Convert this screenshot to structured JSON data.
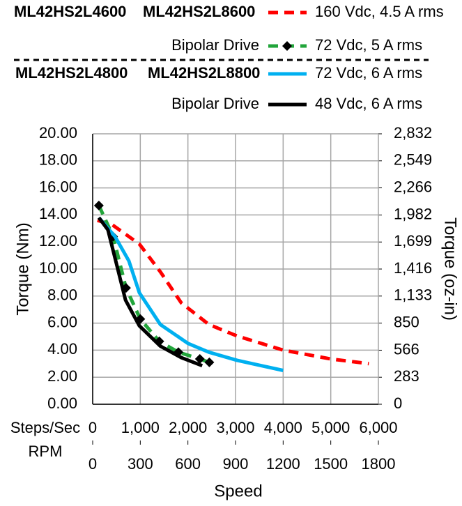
{
  "chart_data": {
    "type": "line",
    "legend_groups": [
      {
        "models": [
          "ML42HS2L4600",
          "ML42HS2L8600"
        ],
        "drive": "Bipolar Drive"
      },
      {
        "models": [
          "ML42HS2L4800",
          "ML42HS2L8800"
        ],
        "drive": "Bipolar Drive"
      }
    ],
    "xlabel": "Speed",
    "x_axis_name": "Steps/Sec",
    "x2_axis_name": "RPM",
    "ylabel": "Torque (Nm)",
    "y2label": "Torque (oz-in)",
    "xlim": [
      0,
      6000
    ],
    "xticks": [
      0,
      {
        "value": 1000,
        "label": "1,000"
      },
      {
        "value": 2000,
        "label": "2,000"
      },
      {
        "value": 3000,
        "label": "3,000"
      },
      {
        "value": 4000,
        "label": "4,000"
      },
      {
        "value": 5000,
        "label": "5,000"
      },
      {
        "value": 6000,
        "label": "6,000"
      }
    ],
    "x2lim": [
      0,
      1800
    ],
    "x2ticks": [
      0,
      300,
      600,
      900,
      1200,
      1500,
      1800
    ],
    "ylim": [
      0,
      20
    ],
    "yticks": [
      {
        "value": 0,
        "label": "0.00"
      },
      {
        "value": 2,
        "label": "2.00"
      },
      {
        "value": 4,
        "label": "4.00"
      },
      {
        "value": 6,
        "label": "6.00"
      },
      {
        "value": 8,
        "label": "8.00"
      },
      {
        "value": 10,
        "label": "10.00"
      },
      {
        "value": 12,
        "label": "12.00"
      },
      {
        "value": 14,
        "label": "14.00"
      },
      {
        "value": 16,
        "label": "16.00"
      },
      {
        "value": 18,
        "label": "18.00"
      },
      {
        "value": 20,
        "label": "20.00"
      }
    ],
    "y2lim": [
      0,
      2832
    ],
    "y2ticks": [
      0,
      283,
      566,
      850,
      {
        "value": 1133,
        "label": "1,133"
      },
      {
        "value": 1416,
        "label": "1,416"
      },
      {
        "value": 1699,
        "label": "1,699"
      },
      {
        "value": 1982,
        "label": "1,982"
      },
      {
        "value": 2266,
        "label": "2,266"
      },
      {
        "value": 2549,
        "label": "2,549"
      },
      {
        "value": 2832,
        "label": "2,832"
      }
    ],
    "grid": true,
    "series": [
      {
        "name": "160 Vdc, 4.5 A rms",
        "color": "#ff0000",
        "line_style": "dashed",
        "x": [
          100,
          400,
          980,
          1420,
          1860,
          2440,
          3030,
          4000,
          5000,
          5800
        ],
        "values": [
          13.6,
          13.3,
          11.85,
          9.8,
          7.5,
          5.9,
          5.05,
          4.0,
          3.35,
          3.0
        ]
      },
      {
        "name": "72 Vdc, 5 A rms",
        "color": "#22a53b",
        "line_style": "dashed",
        "marker": "diamond",
        "x": [
          130,
          430,
          700,
          1000,
          1400,
          1800,
          2250,
          2450
        ],
        "values": [
          14.7,
          12.4,
          8.6,
          6.3,
          4.65,
          3.85,
          3.35,
          3.1
        ]
      },
      {
        "name": "72 Vdc, 6 A rms",
        "color": "#00b0f0",
        "line_style": "solid",
        "x": [
          130,
          470,
          760,
          980,
          1420,
          2000,
          2440,
          3030,
          4000
        ],
        "values": [
          13.8,
          12.4,
          10.6,
          8.25,
          5.9,
          4.5,
          3.85,
          3.25,
          2.5
        ]
      },
      {
        "name": "48 Vdc, 6 A rms",
        "color": "#000000",
        "line_style": "solid",
        "x": [
          130,
          320,
          470,
          690,
          980,
          1420,
          1860,
          2300
        ],
        "values": [
          13.8,
          12.9,
          10.8,
          7.7,
          5.8,
          4.3,
          3.45,
          2.85
        ]
      }
    ]
  }
}
